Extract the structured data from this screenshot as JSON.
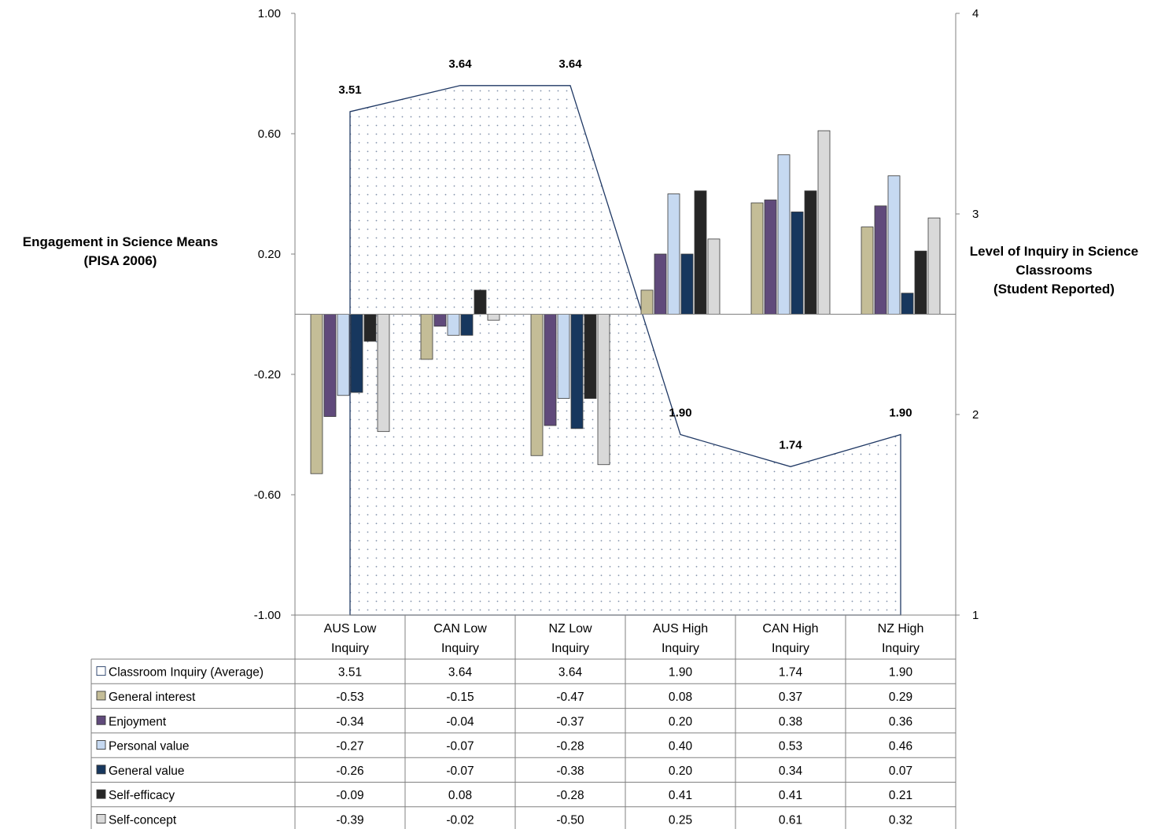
{
  "chart_data": {
    "type": "bar",
    "categories": [
      [
        "AUS Low",
        "Inquiry"
      ],
      [
        "CAN Low",
        "Inquiry"
      ],
      [
        "NZ Low",
        "Inquiry"
      ],
      [
        "AUS High",
        "Inquiry"
      ],
      [
        "CAN High",
        "Inquiry"
      ],
      [
        "NZ High",
        "Inquiry"
      ]
    ],
    "ylabel": "Engagement in Science Means\n(PISA 2006)",
    "y2label": "Level of Inquiry in Science\nClassrooms\n(Student Reported)",
    "ylim": [
      -1.0,
      1.0
    ],
    "y_ticks": [
      "1.00",
      "0.60",
      "0.20",
      "-0.20",
      "-0.60",
      "-1.00"
    ],
    "y2lim": [
      1,
      4
    ],
    "y2_ticks": [
      "4",
      "3",
      "2",
      "1"
    ],
    "area_series": {
      "name": "Classroom Inquiry (Average)",
      "axis": "right",
      "type": "area",
      "pattern": "dotted",
      "fill": "#ffffff",
      "stroke": "#1f3864",
      "values": [
        3.51,
        3.64,
        3.64,
        1.9,
        1.74,
        1.9
      ],
      "labels": [
        "3.51",
        "3.64",
        "3.64",
        "1.90",
        "1.74",
        "1.90"
      ]
    },
    "series": [
      {
        "name": "General interest",
        "color": "#c4bd97",
        "values": [
          -0.53,
          -0.15,
          -0.47,
          0.08,
          0.37,
          0.29
        ],
        "labels": [
          "-0.53",
          "-0.15",
          "-0.47",
          "0.08",
          "0.37",
          "0.29"
        ]
      },
      {
        "name": "Enjoyment",
        "color": "#604a7b",
        "values": [
          -0.34,
          -0.04,
          -0.37,
          0.2,
          0.38,
          0.36
        ],
        "labels": [
          "-0.34",
          "-0.04",
          "-0.37",
          "0.20",
          "0.38",
          "0.36"
        ]
      },
      {
        "name": "Personal value",
        "color": "#c6d9f1",
        "values": [
          -0.27,
          -0.07,
          -0.28,
          0.4,
          0.53,
          0.46
        ],
        "labels": [
          "-0.27",
          "-0.07",
          "-0.28",
          "0.40",
          "0.53",
          "0.46"
        ]
      },
      {
        "name": "General value",
        "color": "#17375e",
        "values": [
          -0.26,
          -0.07,
          -0.38,
          0.2,
          0.34,
          0.07
        ],
        "labels": [
          "-0.26",
          "-0.07",
          "-0.38",
          "0.20",
          "0.34",
          "0.07"
        ]
      },
      {
        "name": "Self-efficacy",
        "color": "#262626",
        "values": [
          -0.09,
          0.08,
          -0.28,
          0.41,
          0.41,
          0.21
        ],
        "labels": [
          "-0.09",
          "0.08",
          "-0.28",
          "0.41",
          "0.41",
          "0.21"
        ]
      },
      {
        "name": "Self-concept",
        "color": "#d9d9d9",
        "values": [
          -0.39,
          -0.02,
          -0.5,
          0.25,
          0.61,
          0.32
        ],
        "labels": [
          "-0.39",
          "-0.02",
          "-0.50",
          "0.25",
          "0.61",
          "0.32"
        ]
      }
    ],
    "data_table": true,
    "legend": "data-table"
  }
}
